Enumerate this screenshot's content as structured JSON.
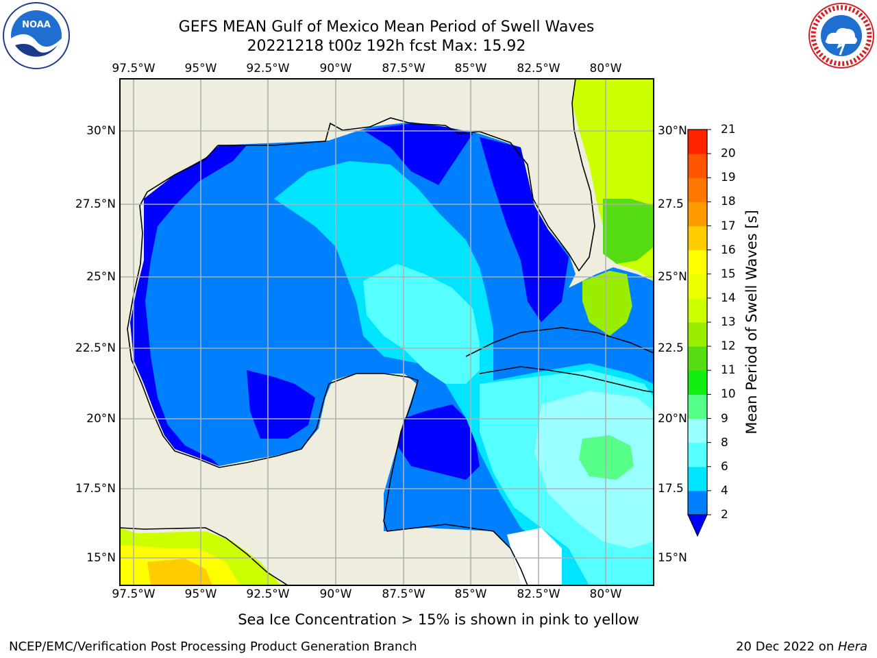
{
  "header": {
    "title_line1": "GEFS MEAN Gulf of Mexico Mean Period of Swell Waves",
    "title_line2": "20221218 t00z 192h fcst   Max: 15.92"
  },
  "logos": {
    "noaa_text": "NOAA",
    "noaa_ring_text": "NATIONAL OCEANIC AND ATMOSPHERIC ADMINISTRATION · U.S. DEPARTMENT OF COMMERCE",
    "nws_ring_text": "NATIONAL WEATHER SERVICE"
  },
  "map": {
    "lon_labels_top": [
      "97.5°W",
      "95°W",
      "92.5°W",
      "90°W",
      "87.5°W",
      "85°W",
      "82.5°W",
      "80°W"
    ],
    "lon_labels_bottom": [
      "97.5°W",
      "95°W",
      "92.5°W",
      "90°W",
      "87.5°W",
      "85°W",
      "82.5°W",
      "80°W"
    ],
    "lat_labels_left": [
      "30°N",
      "27.5°N",
      "25°N",
      "22.5°N",
      "20°N",
      "17.5°N",
      "15°N"
    ],
    "lat_labels_right": [
      "30°N",
      "27.5",
      "25°N",
      "22.5",
      "20°N",
      "17.5",
      "15°N"
    ],
    "extent": {
      "lon_min": -98.0,
      "lon_max": -78.2,
      "lat_min": 14.0,
      "lat_max": 31.8
    },
    "colors": {
      "land": "#efedde",
      "coast": "#000000",
      "grid": "#b0b0b0",
      "missing": "#ffffff"
    }
  },
  "colorbar": {
    "label": "Mean Period of Swell Waves [s]",
    "ticks": [
      "2",
      "4",
      "6",
      "8",
      "9",
      "10",
      "11",
      "12",
      "13",
      "14",
      "15",
      "16",
      "17",
      "18",
      "19",
      "20",
      "21"
    ],
    "under_color": "#0000ff",
    "colors": [
      "#0080ff",
      "#00e5ff",
      "#55ffff",
      "#99ffff",
      "#55ff88",
      "#11ee11",
      "#55dd11",
      "#99ee00",
      "#ccff00",
      "#eeff00",
      "#ffff00",
      "#ffcc00",
      "#ff9900",
      "#ff7700",
      "#ff5500",
      "#ff2200"
    ]
  },
  "footer": {
    "note": "Sea Ice Concentration > 15% is shown in pink to yellow",
    "credit": "NCEP/EMC/Verification Post Processing Product Generation Branch",
    "date": "20 Dec 2022 on ",
    "host": "Hera"
  }
}
